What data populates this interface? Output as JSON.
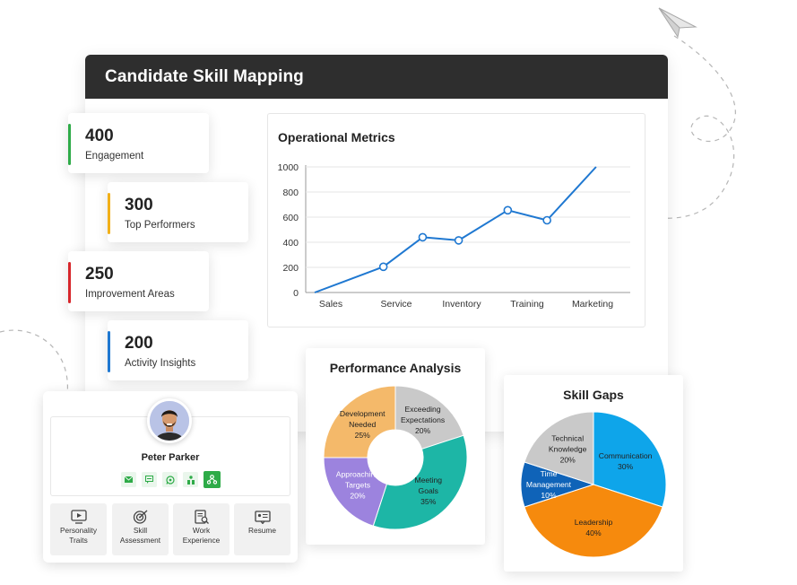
{
  "window": {
    "title": "Candidate Skill Mapping"
  },
  "stats": [
    {
      "value": "400",
      "label": "Engagement",
      "color": "#2eab48"
    },
    {
      "value": "300",
      "label": "Top Performers",
      "color": "#f2b019"
    },
    {
      "value": "250",
      "label": "Improvement Areas",
      "color": "#d7262b"
    },
    {
      "value": "200",
      "label": "Activity Insights",
      "color": "#1f78d1"
    }
  ],
  "line_chart_title": "Operational Metrics",
  "pie1_title": "Performance Analysis",
  "pie2_title": "Skill Gaps",
  "chart_data": [
    {
      "type": "line",
      "title": "Operational Metrics",
      "categories": [
        "Sales",
        "Service",
        "Inventory",
        "Training",
        "Marketing"
      ],
      "y_ticks": [
        "0",
        "200",
        "400",
        "600",
        "800",
        "1000"
      ],
      "ylim": [
        0,
        1000
      ],
      "color": "#1f78d1",
      "values": [
        {
          "x": 0,
          "y": 0
        },
        {
          "x": 1.05,
          "y": 205
        },
        {
          "x": 1.65,
          "y": 440
        },
        {
          "x": 2.2,
          "y": 415
        },
        {
          "x": 2.95,
          "y": 655
        },
        {
          "x": 3.55,
          "y": 575
        },
        {
          "x": 4.3,
          "y": 1000
        }
      ],
      "markers": [
        false,
        true,
        true,
        true,
        true,
        true,
        false
      ]
    },
    {
      "type": "pie",
      "title": "Performance Analysis",
      "donut": true,
      "slices": [
        {
          "label": "Exceeding\nExpectations",
          "value": 20,
          "text": "20%",
          "color": "#c9c9c9"
        },
        {
          "label": "Meeting\nGoals",
          "value": 35,
          "text": "35%",
          "color": "#1db6a6"
        },
        {
          "label": "Approaching\nTargets",
          "value": 20,
          "text": "20%",
          "color": "#9c83de",
          "light": true
        },
        {
          "label": "Development\nNeeded",
          "value": 25,
          "text": "25%",
          "color": "#f4b96a"
        }
      ]
    },
    {
      "type": "pie",
      "title": "Skill Gaps",
      "donut": false,
      "slices": [
        {
          "label": "Communication",
          "value": 30,
          "text": "30%",
          "color": "#0ea5ea"
        },
        {
          "label": "Leadership",
          "value": 40,
          "text": "40%",
          "color": "#f68a0d"
        },
        {
          "label": "Time\nManagement",
          "value": 10,
          "text": "10%",
          "color": "#0f63b8",
          "light": true
        },
        {
          "label": "Technical\nKnowledge",
          "value": 20,
          "text": "20%",
          "color": "#c9c9c9"
        }
      ]
    }
  ],
  "profile": {
    "name": "Peter Parker",
    "actions": [
      "email-icon",
      "message-icon",
      "whatsapp-icon",
      "org-chart-icon",
      "hierarchy-icon"
    ],
    "tiles": [
      {
        "label": "Personality\nTraits",
        "icon": "video-icon"
      },
      {
        "label": "Skill\nAssessment",
        "icon": "target-icon"
      },
      {
        "label": "Work\nExperience",
        "icon": "document-search-icon"
      },
      {
        "label": "Resume",
        "icon": "resume-icon"
      }
    ]
  }
}
